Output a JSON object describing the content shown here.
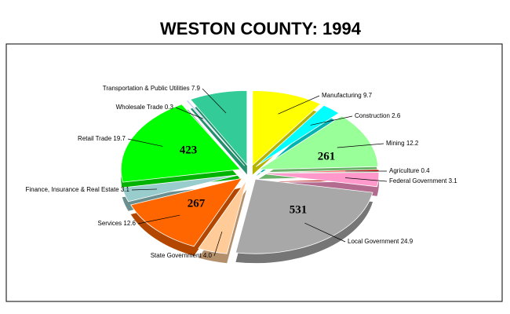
{
  "chart_data": {
    "type": "pie",
    "title": "WESTON COUNTY:  1994",
    "categories": [
      "Manufacturing",
      "Construction",
      "Mining",
      "Agriculture",
      "Federal Government",
      "Local Government",
      "State Government",
      "Services",
      "Finance, Insurance & Real Estate",
      "Retail Trade",
      "Wholesale Trade",
      "Transportation & Public Utilities"
    ],
    "values": [
      9.7,
      2.6,
      12.2,
      0.4,
      3.1,
      24.9,
      4.0,
      12.6,
      3.1,
      19.7,
      0.3,
      7.9
    ],
    "value_labels": [
      "9.7",
      "2.6",
      "12.2",
      "0.4",
      "3.1",
      "24.9",
      "4.0",
      "12.6",
      "3.1",
      "19.7",
      "0.3",
      "7.9"
    ],
    "counts": [
      null,
      null,
      261,
      null,
      null,
      531,
      null,
      267,
      null,
      423,
      null,
      null
    ],
    "colors": [
      "#ffff00",
      "#00ffff",
      "#99ff99",
      "#ff0000",
      "#ff99cc",
      "#a8a8a8",
      "#ffcc99",
      "#ff6600",
      "#99cccc",
      "#00ff00",
      "#ccccff",
      "#33cc99"
    ]
  }
}
